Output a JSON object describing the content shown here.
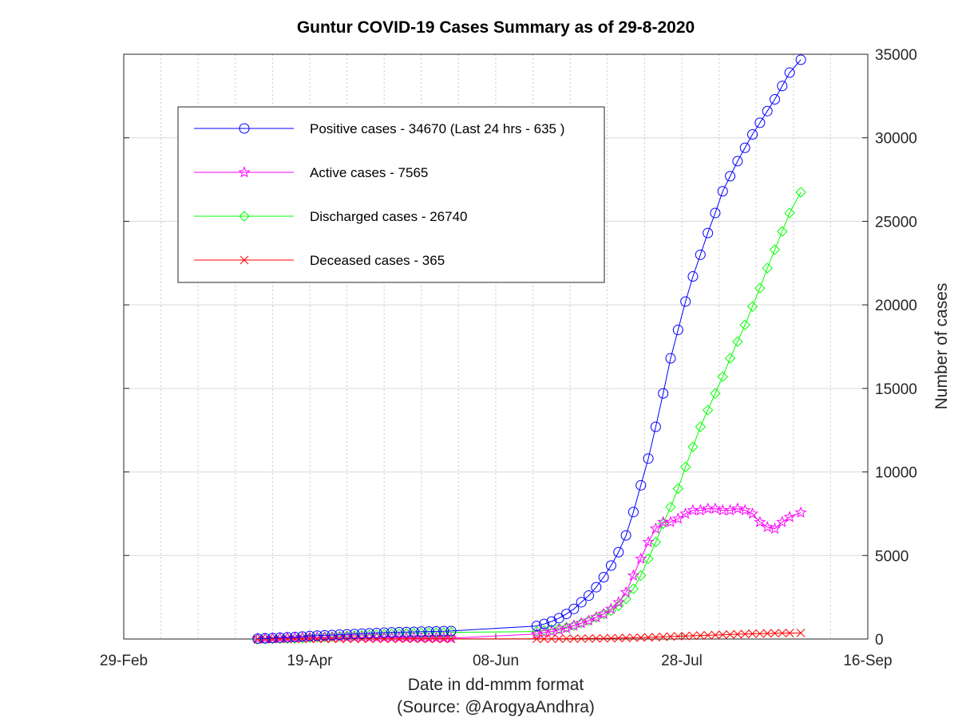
{
  "chart_data": {
    "type": "line",
    "title": "Guntur COVID-19 Cases Summary as of 29-8-2020",
    "xlabel": "Date in dd-mmm format",
    "xlabel_source": "(Source: @ArogyaAndhra)",
    "ylabel": "Number of cases",
    "x_ticks": [
      "29-Feb",
      "19-Apr",
      "08-Jun",
      "28-Jul",
      "16-Sep"
    ],
    "y_ticks": [
      "0",
      "5000",
      "10000",
      "15000",
      "20000",
      "25000",
      "30000",
      "35000"
    ],
    "xlim": [
      "2020-02-29",
      "2020-09-16"
    ],
    "ylim": [
      0,
      35000
    ],
    "y_axis_side": "right",
    "grid": true,
    "legend_position": "top-left",
    "series": [
      {
        "name": "Positive cases - 34670 (Last 24 hrs - 635 )",
        "color": "#0000ff",
        "marker": "circle",
        "segments": [
          {
            "x": [
              "2020-04-05",
              "2020-04-07",
              "2020-04-09",
              "2020-04-11",
              "2020-04-13",
              "2020-04-15",
              "2020-04-17",
              "2020-04-19",
              "2020-04-21",
              "2020-04-23",
              "2020-04-25",
              "2020-04-27",
              "2020-04-29",
              "2020-05-01",
              "2020-05-03",
              "2020-05-05",
              "2020-05-07",
              "2020-05-09",
              "2020-05-11",
              "2020-05-13",
              "2020-05-15",
              "2020-05-17",
              "2020-05-19",
              "2020-05-21",
              "2020-05-23",
              "2020-05-25",
              "2020-05-27"
            ],
            "y": [
              20,
              40,
              60,
              80,
              100,
              120,
              150,
              180,
              200,
              220,
              240,
              260,
              280,
              300,
              320,
              340,
              360,
              380,
              400,
              410,
              420,
              430,
              440,
              450,
              460,
              470,
              480
            ]
          },
          {
            "x": [
              "2020-05-27",
              "2020-06-19"
            ],
            "y": [
              480,
              780
            ]
          },
          {
            "x": [
              "2020-06-19",
              "2020-06-21",
              "2020-06-23",
              "2020-06-25",
              "2020-06-27",
              "2020-06-29",
              "2020-07-01",
              "2020-07-03",
              "2020-07-05",
              "2020-07-07",
              "2020-07-09",
              "2020-07-11",
              "2020-07-13",
              "2020-07-15",
              "2020-07-17",
              "2020-07-19",
              "2020-07-21",
              "2020-07-23",
              "2020-07-25",
              "2020-07-27",
              "2020-07-29",
              "2020-07-31",
              "2020-08-02",
              "2020-08-04",
              "2020-08-06",
              "2020-08-08",
              "2020-08-10",
              "2020-08-12",
              "2020-08-14",
              "2020-08-16",
              "2020-08-18",
              "2020-08-20",
              "2020-08-22",
              "2020-08-24",
              "2020-08-26",
              "2020-08-29"
            ],
            "y": [
              780,
              900,
              1050,
              1250,
              1500,
              1800,
              2200,
              2600,
              3100,
              3700,
              4400,
              5200,
              6200,
              7600,
              9200,
              10800,
              12700,
              14700,
              16800,
              18500,
              20200,
              21700,
              23000,
              24300,
              25500,
              26800,
              27700,
              28600,
              29400,
              30200,
              30900,
              31600,
              32300,
              33100,
              33900,
              34670
            ]
          }
        ]
      },
      {
        "name": "Active cases - 7565",
        "color": "#ff00ff",
        "marker": "star",
        "segments": [
          {
            "x": [
              "2020-04-05",
              "2020-04-07",
              "2020-04-09",
              "2020-04-11",
              "2020-04-13",
              "2020-04-15",
              "2020-04-17",
              "2020-04-19",
              "2020-04-21",
              "2020-04-23",
              "2020-04-25",
              "2020-04-27",
              "2020-04-29",
              "2020-05-01",
              "2020-05-03",
              "2020-05-05",
              "2020-05-07",
              "2020-05-09",
              "2020-05-11",
              "2020-05-13",
              "2020-05-15",
              "2020-05-17",
              "2020-05-19",
              "2020-05-21",
              "2020-05-23",
              "2020-05-25",
              "2020-05-27"
            ],
            "y": [
              20,
              30,
              40,
              50,
              60,
              70,
              80,
              90,
              95,
              100,
              100,
              100,
              100,
              100,
              95,
              90,
              85,
              80,
              80,
              75,
              70,
              70,
              65,
              60,
              60,
              55,
              50
            ]
          },
          {
            "x": [
              "2020-05-27",
              "2020-06-19"
            ],
            "y": [
              50,
              300
            ]
          },
          {
            "x": [
              "2020-06-19",
              "2020-06-21",
              "2020-06-23",
              "2020-06-25",
              "2020-06-27",
              "2020-06-29",
              "2020-07-01",
              "2020-07-03",
              "2020-07-05",
              "2020-07-07",
              "2020-07-09",
              "2020-07-11",
              "2020-07-13",
              "2020-07-15",
              "2020-07-17",
              "2020-07-19",
              "2020-07-21",
              "2020-07-23",
              "2020-07-25",
              "2020-07-27",
              "2020-07-29",
              "2020-07-31",
              "2020-08-02",
              "2020-08-04",
              "2020-08-06",
              "2020-08-08",
              "2020-08-10",
              "2020-08-12",
              "2020-08-14",
              "2020-08-16",
              "2020-08-18",
              "2020-08-20",
              "2020-08-22",
              "2020-08-24",
              "2020-08-26",
              "2020-08-29"
            ],
            "y": [
              300,
              380,
              450,
              550,
              650,
              800,
              950,
              1100,
              1300,
              1500,
              1800,
              2200,
              2800,
              3800,
              4800,
              5800,
              6600,
              7000,
              7000,
              7200,
              7500,
              7700,
              7700,
              7800,
              7800,
              7700,
              7700,
              7800,
              7700,
              7500,
              7000,
              6700,
              6600,
              7000,
              7300,
              7565
            ]
          }
        ]
      },
      {
        "name": "Discharged cases - 26740",
        "color": "#00ff00",
        "marker": "diamond",
        "segments": [
          {
            "x": [
              "2020-04-05",
              "2020-04-07",
              "2020-04-09",
              "2020-04-11",
              "2020-04-13",
              "2020-04-15",
              "2020-04-17",
              "2020-04-19",
              "2020-04-21",
              "2020-04-23",
              "2020-04-25",
              "2020-04-27",
              "2020-04-29",
              "2020-05-01",
              "2020-05-03",
              "2020-05-05",
              "2020-05-07",
              "2020-05-09",
              "2020-05-11",
              "2020-05-13",
              "2020-05-15",
              "2020-05-17",
              "2020-05-19",
              "2020-05-21",
              "2020-05-23",
              "2020-05-25",
              "2020-05-27"
            ],
            "y": [
              0,
              5,
              10,
              20,
              30,
              40,
              60,
              80,
              100,
              120,
              140,
              160,
              180,
              200,
              220,
              240,
              260,
              280,
              300,
              320,
              330,
              340,
              350,
              360,
              370,
              380,
              400
            ]
          },
          {
            "x": [
              "2020-05-27",
              "2020-06-19"
            ],
            "y": [
              400,
              450
            ]
          },
          {
            "x": [
              "2020-06-19",
              "2020-06-21",
              "2020-06-23",
              "2020-06-25",
              "2020-06-27",
              "2020-06-29",
              "2020-07-01",
              "2020-07-03",
              "2020-07-05",
              "2020-07-07",
              "2020-07-09",
              "2020-07-11",
              "2020-07-13",
              "2020-07-15",
              "2020-07-17",
              "2020-07-19",
              "2020-07-21",
              "2020-07-23",
              "2020-07-25",
              "2020-07-27",
              "2020-07-29",
              "2020-07-31",
              "2020-08-02",
              "2020-08-04",
              "2020-08-06",
              "2020-08-08",
              "2020-08-10",
              "2020-08-12",
              "2020-08-14",
              "2020-08-16",
              "2020-08-18",
              "2020-08-20",
              "2020-08-22",
              "2020-08-24",
              "2020-08-26",
              "2020-08-29"
            ],
            "y": [
              450,
              500,
              560,
              620,
              700,
              800,
              950,
              1100,
              1300,
              1500,
              1700,
              2000,
              2400,
              3000,
              3800,
              4800,
              5800,
              6900,
              7900,
              9000,
              10300,
              11500,
              12700,
              13700,
              14700,
              15700,
              16800,
              17800,
              18800,
              19900,
              21000,
              22200,
              23300,
              24400,
              25500,
              26740
            ]
          }
        ]
      },
      {
        "name": "Deceased cases - 365",
        "color": "#ff0000",
        "marker": "x",
        "segments": [
          {
            "x": [
              "2020-04-05",
              "2020-04-07",
              "2020-04-09",
              "2020-04-11",
              "2020-04-13",
              "2020-04-15",
              "2020-04-17",
              "2020-04-19",
              "2020-04-21",
              "2020-04-23",
              "2020-04-25",
              "2020-04-27",
              "2020-04-29",
              "2020-05-01",
              "2020-05-03",
              "2020-05-05",
              "2020-05-07",
              "2020-05-09",
              "2020-05-11",
              "2020-05-13",
              "2020-05-15",
              "2020-05-17",
              "2020-05-19",
              "2020-05-21",
              "2020-05-23",
              "2020-05-25",
              "2020-05-27"
            ],
            "y": [
              0,
              0,
              1,
              2,
              3,
              4,
              5,
              6,
              6,
              7,
              7,
              8,
              8,
              8,
              8,
              8,
              8,
              8,
              8,
              8,
              8,
              8,
              8,
              8,
              8,
              8,
              8
            ]
          },
          {
            "x": [
              "2020-05-27",
              "2020-06-19"
            ],
            "y": [
              8,
              10
            ]
          },
          {
            "x": [
              "2020-06-19",
              "2020-06-21",
              "2020-06-23",
              "2020-06-25",
              "2020-06-27",
              "2020-06-29",
              "2020-07-01",
              "2020-07-03",
              "2020-07-05",
              "2020-07-07",
              "2020-07-09",
              "2020-07-11",
              "2020-07-13",
              "2020-07-15",
              "2020-07-17",
              "2020-07-19",
              "2020-07-21",
              "2020-07-23",
              "2020-07-25",
              "2020-07-27",
              "2020-07-29",
              "2020-07-31",
              "2020-08-02",
              "2020-08-04",
              "2020-08-06",
              "2020-08-08",
              "2020-08-10",
              "2020-08-12",
              "2020-08-14",
              "2020-08-16",
              "2020-08-18",
              "2020-08-20",
              "2020-08-22",
              "2020-08-24",
              "2020-08-26",
              "2020-08-29"
            ],
            "y": [
              10,
              12,
              15,
              18,
              20,
              23,
              27,
              30,
              35,
              40,
              45,
              55,
              65,
              75,
              90,
              100,
              115,
              130,
              150,
              165,
              180,
              195,
              210,
              225,
              240,
              255,
              270,
              285,
              300,
              315,
              325,
              335,
              345,
              355,
              360,
              365
            ]
          }
        ]
      }
    ]
  }
}
